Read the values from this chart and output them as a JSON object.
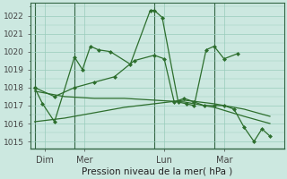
{
  "background_color": "#cce8e0",
  "plot_bg_color": "#cce8e0",
  "grid_color": "#99ccbb",
  "line_color": "#2d6e2d",
  "marker_color": "#2d6e2d",
  "title": "Pression niveau de la mer( hPa )",
  "ylabel_ticks": [
    1015,
    1016,
    1017,
    1018,
    1019,
    1020,
    1021,
    1022
  ],
  "ylim": [
    1014.6,
    1022.7
  ],
  "xlim": [
    -0.2,
    12.5
  ],
  "day_labels": [
    "Dim",
    "Mer",
    "Lun",
    "Mar"
  ],
  "day_positions": [
    0.5,
    2.5,
    6.5,
    9.5
  ],
  "vline_positions": [
    0.0,
    2.0,
    6.0,
    9.0
  ],
  "series1_x": [
    0.0,
    0.4,
    1.0,
    2.0,
    2.4,
    2.8,
    3.2,
    3.8,
    4.8,
    5.8,
    6.0,
    6.4,
    7.2,
    7.6,
    8.0,
    8.6,
    9.0,
    9.5,
    10.2
  ],
  "series1_y": [
    1018.0,
    1017.1,
    1016.1,
    1019.7,
    1019.0,
    1020.3,
    1020.1,
    1020.0,
    1019.3,
    1022.3,
    1022.3,
    1021.9,
    1017.2,
    1017.1,
    1017.0,
    1020.1,
    1020.3,
    1019.6,
    1019.9
  ],
  "series2_x": [
    0.0,
    1.0,
    2.0,
    3.0,
    4.0,
    5.0,
    6.0,
    6.5,
    7.0,
    7.5,
    8.0,
    8.5,
    9.0,
    9.5,
    10.0,
    10.5,
    11.0,
    11.4,
    11.8
  ],
  "series2_y": [
    1018.0,
    1017.5,
    1018.0,
    1018.3,
    1018.6,
    1019.5,
    1019.8,
    1019.6,
    1017.2,
    1017.4,
    1017.2,
    1017.0,
    1017.0,
    1017.0,
    1016.8,
    1015.8,
    1015.0,
    1015.7,
    1015.3
  ],
  "series3_x": [
    0.0,
    1.5,
    3.0,
    4.5,
    6.0,
    7.5,
    9.0,
    10.5,
    11.8
  ],
  "series3_y": [
    1016.1,
    1016.3,
    1016.6,
    1016.9,
    1017.1,
    1017.3,
    1017.1,
    1016.8,
    1016.4
  ],
  "series4_x": [
    0.0,
    1.5,
    3.0,
    4.5,
    6.0,
    7.5,
    9.0,
    10.5,
    11.8
  ],
  "series4_y": [
    1017.8,
    1017.5,
    1017.4,
    1017.4,
    1017.3,
    1017.2,
    1016.9,
    1016.4,
    1016.0
  ]
}
